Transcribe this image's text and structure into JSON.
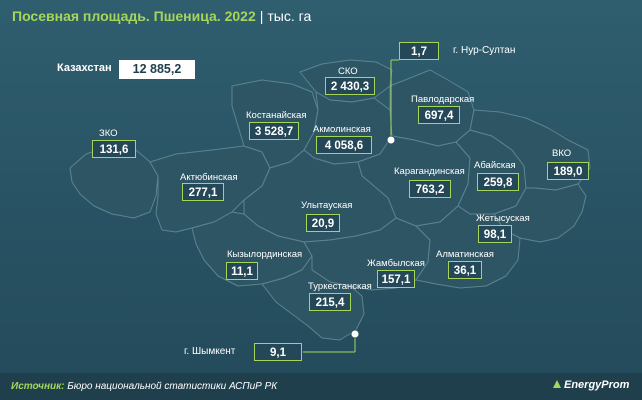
{
  "title": "Посевная площадь. Пшеница. 2022",
  "unit": "тыс. га",
  "kazakhstan": {
    "label": "Казахстан",
    "value": "12 885,2"
  },
  "regions": {
    "zko": {
      "name": "ЗКО",
      "value": "131,6"
    },
    "aktobe": {
      "name": "Актюбинская",
      "value": "277,1"
    },
    "kostanay": {
      "name": "Костанайская",
      "value": "3 528,7"
    },
    "sko": {
      "name": "СКО",
      "value": "2 430,3"
    },
    "akmola": {
      "name": "Акмолинская",
      "value": "4 058,6"
    },
    "pavlodar": {
      "name": "Павлодарская",
      "value": "697,4"
    },
    "karaganda": {
      "name": "Карагандинская",
      "value": "763,2"
    },
    "abai": {
      "name": "Абайская",
      "value": "259,8"
    },
    "vko": {
      "name": "ВКО",
      "value": "189,0"
    },
    "ulytau": {
      "name": "Улытауская",
      "value": "20,9"
    },
    "zhetysu": {
      "name": "Жетысуская",
      "value": "98,1"
    },
    "kyzylorda": {
      "name": "Кызылординская",
      "value": "11,1"
    },
    "zhambyl": {
      "name": "Жамбылская",
      "value": "157,1"
    },
    "almaty": {
      "name": "Алматинская",
      "value": "36,1"
    },
    "turkestan": {
      "name": "Туркестанская",
      "value": "215,4"
    }
  },
  "cities": {
    "nursultan": {
      "name": "г. Нур-Султан",
      "value": "1,7"
    },
    "shymkent": {
      "name": "г. Шымкент",
      "value": "9,1"
    }
  },
  "source": {
    "label": "Источник:",
    "text": "Бюро национальной статистики АСПиР РК"
  },
  "logo": "EnergyProm",
  "colors": {
    "accent": "#a5d65a",
    "region": "#2d5564",
    "border": "#5d8391",
    "background": "#285263"
  }
}
